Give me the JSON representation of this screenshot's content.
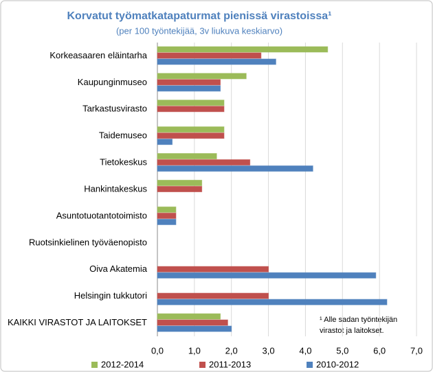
{
  "chart_data": {
    "type": "bar",
    "orientation": "horizontal",
    "title": "Korvatut työmatkatapaturmat pienissä virastoissa¹",
    "subtitle": "(per 100 työntekijää, 3v liukuva keskiarvo)",
    "categories": [
      "Korkeasaaren eläintarha",
      "Kaupunginmuseo",
      "Tarkastusvirasto",
      "Taidemuseo",
      "Tietokeskus",
      "Hankintakeskus",
      "Asuntotuotantotoimisto",
      "Ruotsinkielinen työväenopisto",
      "Oiva Akatemia",
      "Helsingin tukkutori",
      "KAIKKI VIRASTOT JA LAITOKSET"
    ],
    "series": [
      {
        "name": "2012-2014",
        "color": "#9bbb59",
        "values": [
          4.6,
          2.4,
          1.8,
          1.8,
          1.6,
          1.2,
          0.5,
          null,
          null,
          null,
          1.7
        ]
      },
      {
        "name": "2011-2013",
        "color": "#c0504d",
        "values": [
          2.8,
          1.7,
          1.8,
          1.8,
          2.5,
          1.2,
          0.5,
          null,
          3.0,
          3.0,
          1.9
        ]
      },
      {
        "name": "2010-2012",
        "color": "#4f81bd",
        "values": [
          3.2,
          1.7,
          null,
          0.4,
          4.2,
          null,
          0.5,
          null,
          5.9,
          6.2,
          2.0
        ]
      }
    ],
    "xlim": [
      0,
      7
    ],
    "xticks": [
      {
        "value": 0,
        "label": "0,0"
      },
      {
        "value": 1,
        "label": "1,0"
      },
      {
        "value": 2,
        "label": "2,0"
      },
      {
        "value": 3,
        "label": "3,0"
      },
      {
        "value": 4,
        "label": "4,0"
      },
      {
        "value": 5,
        "label": "5,0"
      },
      {
        "value": 6,
        "label": "6,0"
      },
      {
        "value": 7,
        "label": "7,0"
      }
    ],
    "grid": true,
    "legend": "bottom",
    "annotations": [
      "¹ Alle sadan työntekijän",
      "virastot ja laitokset."
    ]
  }
}
